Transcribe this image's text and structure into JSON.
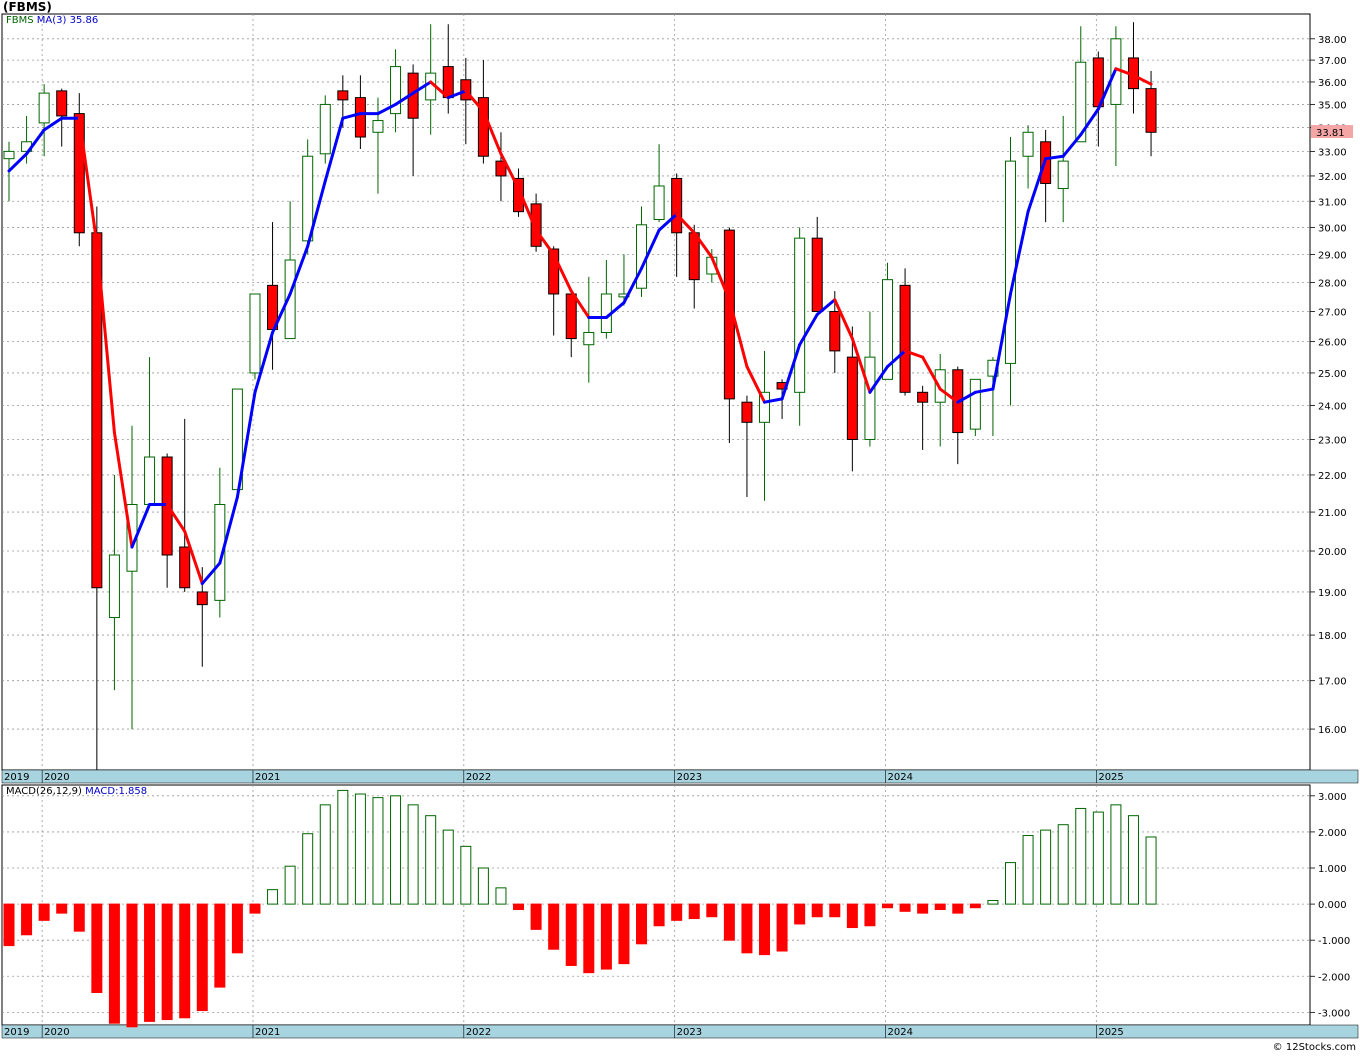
{
  "header": {
    "title": "(FBMS)",
    "legend_symbol": "FBMS",
    "ma_label": "MA(3)",
    "ma_value": "35.86",
    "macd_label": "MACD(26,12,9)",
    "macd_value": "MACD:1.858",
    "credit": "© 12Stocks.com"
  },
  "colors": {
    "up_candle_border": "#006600",
    "down_candle_fill": "#ff0000",
    "ma_up": "#0000ff",
    "ma_down": "#ff0000",
    "grid": "#999999",
    "axis_band": "#a8d4e0",
    "last_price_box": "#f4a6a6"
  },
  "chart_data": [
    {
      "type": "candlestick",
      "title": "(FBMS)",
      "period": "monthly",
      "y_scale": "log",
      "ylim": [
        15.2,
        39.2
      ],
      "y_ticks": [
        "16.00",
        "17.00",
        "18.00",
        "19.00",
        "20.00",
        "21.00",
        "22.00",
        "23.00",
        "24.00",
        "25.00",
        "26.00",
        "27.00",
        "28.00",
        "29.00",
        "30.00",
        "31.00",
        "32.00",
        "33.00",
        "34.00",
        "35.00",
        "36.00",
        "37.00",
        "38.00"
      ],
      "x_labels": [
        "2019",
        "2020",
        "2021",
        "2022",
        "2023",
        "2024",
        "2025"
      ],
      "last_price": "33.81",
      "series": [
        {
          "x": "2019-11",
          "o": 32.7,
          "h": 33.4,
          "l": 31.0,
          "c": 33.0
        },
        {
          "x": "2019-12",
          "o": 33.0,
          "h": 34.5,
          "l": 32.5,
          "c": 33.4
        },
        {
          "x": "2020-01",
          "o": 34.2,
          "h": 35.9,
          "l": 32.8,
          "c": 35.5
        },
        {
          "x": "2020-02",
          "o": 35.6,
          "h": 35.7,
          "l": 33.2,
          "c": 34.5
        },
        {
          "x": "2020-03",
          "o": 34.6,
          "h": 35.5,
          "l": 29.3,
          "c": 29.8
        },
        {
          "x": "2020-04",
          "o": 29.8,
          "h": 30.8,
          "l": 15.2,
          "c": 19.1
        },
        {
          "x": "2020-05",
          "o": 18.4,
          "h": 22.0,
          "l": 16.8,
          "c": 19.9
        },
        {
          "x": "2020-06",
          "o": 19.5,
          "h": 23.4,
          "l": 16.0,
          "c": 21.2
        },
        {
          "x": "2020-07",
          "o": 21.2,
          "h": 25.5,
          "l": 21.2,
          "c": 22.5
        },
        {
          "x": "2020-08",
          "o": 22.5,
          "h": 22.6,
          "l": 19.1,
          "c": 19.9
        },
        {
          "x": "2020-09",
          "o": 20.1,
          "h": 23.6,
          "l": 19.0,
          "c": 19.1
        },
        {
          "x": "2020-10",
          "o": 19.0,
          "h": 19.6,
          "l": 17.3,
          "c": 18.7
        },
        {
          "x": "2020-11",
          "o": 18.8,
          "h": 22.2,
          "l": 18.4,
          "c": 21.2
        },
        {
          "x": "2020-12",
          "o": 21.6,
          "h": 24.4,
          "l": 21.5,
          "c": 24.5
        },
        {
          "x": "2021-01",
          "o": 25.0,
          "h": 26.5,
          "l": 24.8,
          "c": 27.6
        },
        {
          "x": "2021-02",
          "o": 27.9,
          "h": 30.2,
          "l": 25.1,
          "c": 26.4
        },
        {
          "x": "2021-03",
          "o": 26.1,
          "h": 31.0,
          "l": 26.1,
          "c": 28.8
        },
        {
          "x": "2021-04",
          "o": 29.5,
          "h": 33.5,
          "l": 29.0,
          "c": 32.8
        },
        {
          "x": "2021-05",
          "o": 32.9,
          "h": 35.4,
          "l": 32.5,
          "c": 35.0
        },
        {
          "x": "2021-06",
          "o": 35.6,
          "h": 36.3,
          "l": 34.0,
          "c": 35.2
        },
        {
          "x": "2021-07",
          "o": 35.3,
          "h": 36.3,
          "l": 33.1,
          "c": 33.6
        },
        {
          "x": "2021-08",
          "o": 33.8,
          "h": 35.3,
          "l": 31.3,
          "c": 34.3
        },
        {
          "x": "2021-09",
          "o": 34.6,
          "h": 37.5,
          "l": 33.8,
          "c": 36.7
        },
        {
          "x": "2021-10",
          "o": 36.4,
          "h": 36.8,
          "l": 32.0,
          "c": 34.4
        },
        {
          "x": "2021-11",
          "o": 35.2,
          "h": 38.7,
          "l": 33.7,
          "c": 36.4
        },
        {
          "x": "2021-12",
          "o": 36.7,
          "h": 38.7,
          "l": 34.6,
          "c": 35.3
        },
        {
          "x": "2022-01",
          "o": 36.1,
          "h": 37.1,
          "l": 33.3,
          "c": 35.2
        },
        {
          "x": "2022-02",
          "o": 35.3,
          "h": 37.0,
          "l": 32.5,
          "c": 32.8
        },
        {
          "x": "2022-03",
          "o": 32.6,
          "h": 33.8,
          "l": 31.0,
          "c": 32.0
        },
        {
          "x": "2022-04",
          "o": 31.9,
          "h": 32.3,
          "l": 30.4,
          "c": 30.6
        },
        {
          "x": "2022-05",
          "o": 30.9,
          "h": 31.3,
          "l": 29.1,
          "c": 29.3
        },
        {
          "x": "2022-06",
          "o": 29.2,
          "h": 29.3,
          "l": 26.2,
          "c": 27.6
        },
        {
          "x": "2022-07",
          "o": 27.6,
          "h": 27.6,
          "l": 25.5,
          "c": 26.1
        },
        {
          "x": "2022-08",
          "o": 25.9,
          "h": 28.2,
          "l": 24.7,
          "c": 26.3
        },
        {
          "x": "2022-09",
          "o": 26.3,
          "h": 28.8,
          "l": 26.1,
          "c": 27.6
        },
        {
          "x": "2022-10",
          "o": 27.5,
          "h": 29.0,
          "l": 27.2,
          "c": 27.6
        },
        {
          "x": "2022-11",
          "o": 27.8,
          "h": 30.8,
          "l": 27.5,
          "c": 30.1
        },
        {
          "x": "2022-12",
          "o": 30.3,
          "h": 33.3,
          "l": 30.2,
          "c": 31.6
        },
        {
          "x": "2023-01",
          "o": 31.9,
          "h": 32.1,
          "l": 28.2,
          "c": 29.8
        },
        {
          "x": "2023-02",
          "o": 29.8,
          "h": 30.1,
          "l": 27.1,
          "c": 28.1
        },
        {
          "x": "2023-03",
          "o": 28.3,
          "h": 29.2,
          "l": 28.0,
          "c": 28.9
        },
        {
          "x": "2023-04",
          "o": 29.9,
          "h": 30.0,
          "l": 22.9,
          "c": 24.2
        },
        {
          "x": "2023-05",
          "o": 24.1,
          "h": 24.3,
          "l": 21.4,
          "c": 23.5
        },
        {
          "x": "2023-06",
          "o": 23.5,
          "h": 25.7,
          "l": 21.3,
          "c": 24.4
        },
        {
          "x": "2023-07",
          "o": 24.7,
          "h": 24.8,
          "l": 23.6,
          "c": 24.5
        },
        {
          "x": "2023-08",
          "o": 24.4,
          "h": 30.0,
          "l": 23.4,
          "c": 29.6
        },
        {
          "x": "2023-09",
          "o": 29.6,
          "h": 30.4,
          "l": 27.0,
          "c": 27.0
        },
        {
          "x": "2023-10",
          "o": 27.0,
          "h": 27.7,
          "l": 25.0,
          "c": 25.7
        },
        {
          "x": "2023-11",
          "o": 25.5,
          "h": 26.5,
          "l": 22.1,
          "c": 23.0
        },
        {
          "x": "2023-12",
          "o": 23.0,
          "h": 27.0,
          "l": 22.8,
          "c": 25.5
        },
        {
          "x": "2024-01",
          "o": 24.8,
          "h": 28.7,
          "l": 24.8,
          "c": 28.1
        },
        {
          "x": "2024-02",
          "o": 27.9,
          "h": 28.5,
          "l": 24.3,
          "c": 24.4
        },
        {
          "x": "2024-03",
          "o": 24.4,
          "h": 24.6,
          "l": 22.7,
          "c": 24.1
        },
        {
          "x": "2024-04",
          "o": 24.1,
          "h": 25.6,
          "l": 22.8,
          "c": 25.1
        },
        {
          "x": "2024-05",
          "o": 25.1,
          "h": 25.2,
          "l": 22.3,
          "c": 23.2
        },
        {
          "x": "2024-06",
          "o": 23.3,
          "h": 24.8,
          "l": 23.1,
          "c": 24.8
        },
        {
          "x": "2024-07",
          "o": 24.9,
          "h": 25.5,
          "l": 23.1,
          "c": 25.4
        },
        {
          "x": "2024-08",
          "o": 25.3,
          "h": 33.6,
          "l": 24.0,
          "c": 32.6
        },
        {
          "x": "2024-09",
          "o": 32.8,
          "h": 34.1,
          "l": 31.5,
          "c": 33.8
        },
        {
          "x": "2024-10",
          "o": 33.4,
          "h": 33.9,
          "l": 30.2,
          "c": 31.7
        },
        {
          "x": "2024-11",
          "o": 31.5,
          "h": 34.5,
          "l": 30.2,
          "c": 32.6
        },
        {
          "x": "2024-12",
          "o": 33.4,
          "h": 38.6,
          "l": 33.4,
          "c": 36.9
        },
        {
          "x": "2025-01",
          "o": 37.1,
          "h": 37.4,
          "l": 33.2,
          "c": 34.9
        },
        {
          "x": "2025-02",
          "o": 35.0,
          "h": 38.6,
          "l": 32.4,
          "c": 38.0
        },
        {
          "x": "2025-03",
          "o": 37.1,
          "h": 38.8,
          "l": 34.6,
          "c": 35.7
        },
        {
          "x": "2025-04",
          "o": 35.7,
          "h": 36.5,
          "l": 32.8,
          "c": 33.8
        }
      ],
      "ma3": [
        32.2,
        32.9,
        33.9,
        34.4,
        34.4,
        29.4,
        23.2,
        20.1,
        21.2,
        21.2,
        20.5,
        19.2,
        19.7,
        21.4,
        24.4,
        26.3,
        27.6,
        29.3,
        31.8,
        34.4,
        34.6,
        34.6,
        35.0,
        35.5,
        36.0,
        35.3,
        35.6,
        34.7,
        32.9,
        31.5,
        29.9,
        29.0,
        27.7,
        26.8,
        26.8,
        27.3,
        28.5,
        29.9,
        30.5,
        29.8,
        28.9,
        27.4,
        25.2,
        24.1,
        24.2,
        25.9,
        26.9,
        27.4,
        26.1,
        24.4,
        25.2,
        25.7,
        25.5,
        24.5,
        24.1,
        24.4,
        24.5,
        27.6,
        30.6,
        32.7,
        32.8,
        33.7,
        34.8,
        36.6,
        36.3,
        35.9
      ],
      "ma_label": "MA(3)",
      "ma_value": 35.86
    },
    {
      "type": "bar",
      "title": "MACD(26,12,9)",
      "ylim": [
        -3.35,
        3.3
      ],
      "y_ticks": [
        "3.000",
        "2.000",
        "1.000",
        "0.000",
        "-1.000",
        "-2.000",
        "-3.000"
      ],
      "x_labels": [
        "2019",
        "2020",
        "2021",
        "2022",
        "2023",
        "2024",
        "2025"
      ],
      "values": [
        -1.15,
        -0.85,
        -0.45,
        -0.25,
        -0.75,
        -2.45,
        -3.3,
        -3.4,
        -3.25,
        -3.2,
        -3.15,
        -2.95,
        -2.3,
        -1.35,
        -0.25,
        0.4,
        1.05,
        1.95,
        2.75,
        3.15,
        3.05,
        2.95,
        3.0,
        2.75,
        2.45,
        2.05,
        1.6,
        1.0,
        0.45,
        -0.15,
        -0.7,
        -1.25,
        -1.7,
        -1.9,
        -1.8,
        -1.65,
        -1.1,
        -0.6,
        -0.45,
        -0.4,
        -0.35,
        -1.0,
        -1.35,
        -1.4,
        -1.3,
        -0.55,
        -0.35,
        -0.35,
        -0.65,
        -0.6,
        -0.1,
        -0.2,
        -0.25,
        -0.15,
        -0.25,
        -0.1,
        0.1,
        1.15,
        1.9,
        2.05,
        2.2,
        2.65,
        2.55,
        2.75,
        2.45,
        1.86
      ],
      "value_label": "MACD:1.858"
    }
  ]
}
